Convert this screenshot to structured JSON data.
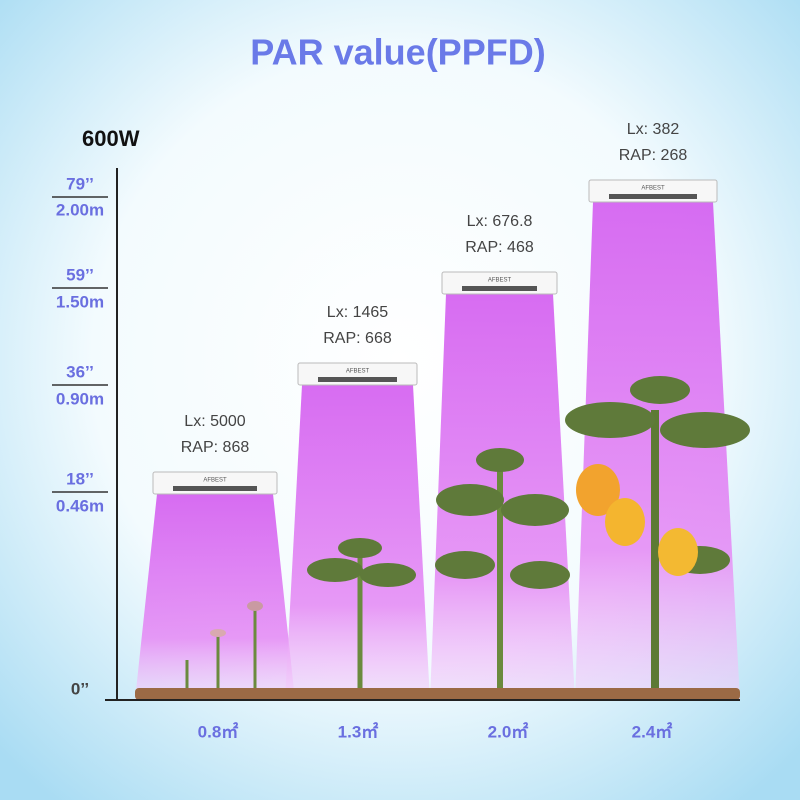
{
  "header": {
    "title": "PAR value(PPFD)",
    "power": "600W"
  },
  "heights": [
    {
      "inch": "79’’",
      "meter": "2.00m"
    },
    {
      "inch": "59’’",
      "meter": "1.50m"
    },
    {
      "inch": "36’’",
      "meter": "0.90m"
    },
    {
      "inch": "18’’",
      "meter": "0.46m"
    },
    {
      "inch": "0’’"
    }
  ],
  "lamps": [
    {
      "lux": "Lx: 5000",
      "rap": "RAP: 868",
      "brand": "AFBEST",
      "area": "0.8㎡"
    },
    {
      "lux": "Lx: 1465",
      "rap": "RAP: 668",
      "brand": "AFBEST",
      "area": "1.3㎡"
    },
    {
      "lux": "Lx: 676.8",
      "rap": "RAP: 468",
      "brand": "AFBEST",
      "area": "2.0㎡"
    },
    {
      "lux": "Lx: 382",
      "rap": "RAP: 268",
      "brand": "AFBEST",
      "area": "2.4㎡"
    }
  ]
}
